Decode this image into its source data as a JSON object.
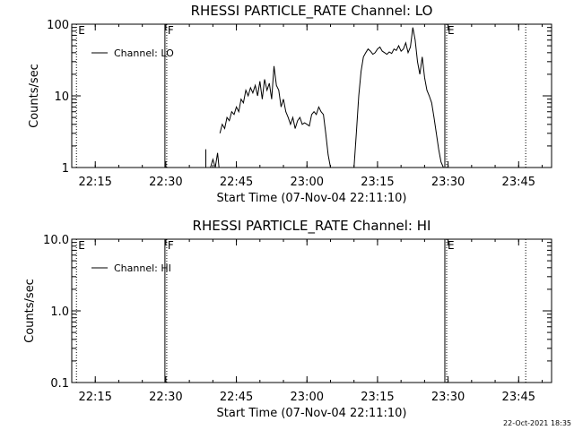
{
  "chart_data": [
    {
      "type": "line",
      "title": "RHESSI PARTICLE_RATE Channel: LO",
      "xlabel": "Start Time (07-Nov-04 22:11:10)",
      "ylabel": "Counts/sec",
      "y_scale": "log",
      "ylim": [
        1,
        100
      ],
      "xlim": [
        "22:10",
        "23:52"
      ],
      "xtick_labels": [
        "22:15",
        "22:30",
        "22:45",
        "23:00",
        "23:15",
        "23:30",
        "23:45"
      ],
      "ytick_labels": [
        "1",
        "10",
        "100"
      ],
      "grid": false,
      "legend": {
        "position": "top-left",
        "entries": [
          "Channel: LO"
        ]
      },
      "event_markers": [
        {
          "time": "22:11",
          "label": "E",
          "style": "dotted"
        },
        {
          "time": "22:30",
          "label": "F",
          "style": "solid+dotted"
        },
        {
          "time": "23:29.5",
          "label": "E",
          "style": "solid+dotted"
        },
        {
          "time": "23:46.5",
          "label": "",
          "style": "dotted"
        }
      ],
      "series": [
        {
          "name": "Channel: LO",
          "segments": [
            {
              "x": [
                "22:38.5",
                "22:38.5"
              ],
              "y": [
                1.8,
                1.0
              ]
            },
            {
              "x": [
                "22:39.5",
                "22:40",
                "22:40.5",
                "22:41",
                "22:41.3"
              ],
              "y": [
                1.0,
                1.3,
                1.0,
                1.6,
                1.0
              ]
            },
            {
              "x": [
                "22:41.5",
                "22:42",
                "22:42.5",
                "22:43",
                "22:43.5",
                "22:44",
                "22:44.5",
                "22:45",
                "22:45.5",
                "22:46",
                "22:46.5",
                "22:47",
                "22:47.5",
                "22:48",
                "22:48.5",
                "22:49",
                "22:49.5",
                "22:50",
                "22:50.5",
                "22:51",
                "22:51.5",
                "22:52",
                "22:52.5",
                "22:53",
                "22:53.5",
                "22:54",
                "22:54.5",
                "22:55",
                "22:55.5",
                "22:56",
                "22:56.5",
                "22:57",
                "22:57.5",
                "22:58",
                "22:58.5",
                "22:59",
                "22:59.5",
                "23:00",
                "23:00.5",
                "23:01",
                "23:01.5",
                "23:02",
                "23:02.5",
                "23:03",
                "23:03.5",
                "23:04",
                "23:04.5",
                "23:05"
              ],
              "y": [
                3.0,
                4.0,
                3.5,
                5.0,
                4.5,
                6.0,
                5.5,
                7.0,
                6.0,
                9.0,
                8.0,
                12.0,
                10.0,
                13.0,
                11.0,
                14.0,
                10.0,
                16.0,
                9.0,
                17.0,
                12.0,
                15.0,
                9.0,
                26.0,
                14.0,
                12.0,
                7.0,
                9.0,
                6.0,
                5.0,
                4.0,
                5.0,
                3.5,
                4.5,
                5.0,
                4.0,
                4.2,
                4.0,
                3.8,
                5.5,
                6.0,
                5.5,
                7.0,
                6.0,
                5.5,
                3.0,
                1.5,
                1.0
              ]
            },
            {
              "x": [
                "23:10",
                "23:10.5",
                "23:11",
                "23:11.5",
                "23:12",
                "23:12.5",
                "23:13",
                "23:13.5",
                "23:14",
                "23:14.5",
                "23:15",
                "23:15.5",
                "23:16",
                "23:16.5",
                "23:17",
                "23:17.5",
                "23:18",
                "23:18.5",
                "23:19",
                "23:19.5",
                "23:20",
                "23:20.5",
                "23:21",
                "23:21.5",
                "23:22",
                "23:22.5",
                "23:23",
                "23:23.5",
                "23:24",
                "23:24.5",
                "23:25",
                "23:25.5",
                "23:26",
                "23:26.5",
                "23:27",
                "23:27.5",
                "23:28",
                "23:28.5",
                "23:29"
              ],
              "y": [
                1.0,
                3.0,
                10.0,
                22.0,
                35.0,
                40.0,
                45.0,
                42.0,
                38.0,
                40.0,
                45.0,
                48.0,
                42.0,
                40.0,
                38.0,
                41.0,
                39.0,
                45.0,
                43.0,
                50.0,
                42.0,
                45.0,
                55.0,
                40.0,
                48.0,
                90.0,
                60.0,
                30.0,
                20.0,
                35.0,
                18.0,
                12.0,
                10.0,
                8.0,
                5.0,
                3.0,
                1.8,
                1.2,
                1.0
              ]
            }
          ]
        }
      ]
    },
    {
      "type": "line",
      "title": "RHESSI PARTICLE_RATE Channel: HI",
      "xlabel": "Start Time (07-Nov-04 22:11:10)",
      "ylabel": "Counts/sec",
      "y_scale": "log",
      "ylim": [
        0.1,
        10
      ],
      "xlim": [
        "22:10",
        "23:52"
      ],
      "xtick_labels": [
        "22:15",
        "22:30",
        "22:45",
        "23:00",
        "23:15",
        "23:30",
        "23:45"
      ],
      "ytick_labels": [
        "0.1",
        "1.0",
        "10.0"
      ],
      "grid": false,
      "legend": {
        "position": "top-left",
        "entries": [
          "Channel: HI"
        ]
      },
      "event_markers": [
        {
          "time": "22:11",
          "label": "E",
          "style": "dotted"
        },
        {
          "time": "22:30",
          "label": "F",
          "style": "solid+dotted"
        },
        {
          "time": "23:29.5",
          "label": "E",
          "style": "solid+dotted"
        },
        {
          "time": "23:46.5",
          "label": "",
          "style": "dotted"
        }
      ],
      "series": [
        {
          "name": "Channel: HI",
          "segments": []
        }
      ]
    }
  ],
  "footer": {
    "date": "22-Oct-2021 18:35"
  }
}
